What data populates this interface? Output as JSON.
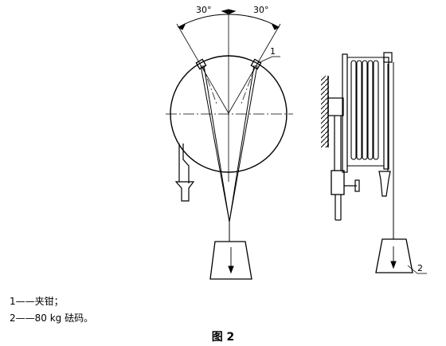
{
  "figure": {
    "angle_left": "30°",
    "angle_right": "30°",
    "callout_1": "1",
    "callout_2": "2"
  },
  "legend": [
    {
      "key": "1",
      "dash": "——",
      "text": "夹钳；"
    },
    {
      "key": "2",
      "dash": "——",
      "text": "80 kg 砝码。"
    }
  ],
  "caption": "图 2"
}
